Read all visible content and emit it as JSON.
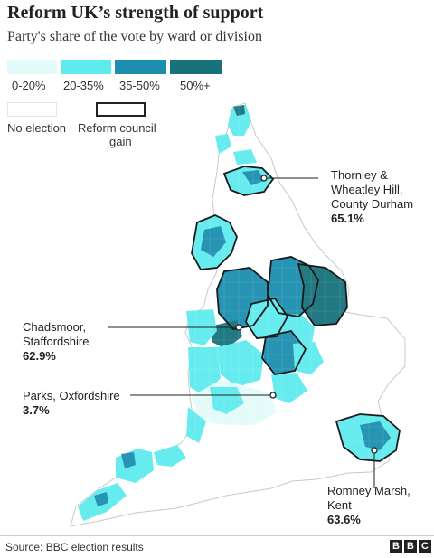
{
  "title": "Reform UK’s strength of support",
  "subtitle": "Party's share of the vote by ward or division",
  "legend": {
    "bins": [
      {
        "label": "0-20%",
        "color": "#e3fbfa"
      },
      {
        "label": "20-35%",
        "color": "#5eebee"
      },
      {
        "label": "35-50%",
        "color": "#1c8fb0"
      },
      {
        "label": "50%+",
        "color": "#17727c"
      }
    ],
    "no_election_label": "No election",
    "gain_label_line1": "Reform council",
    "gain_label_line2": "gain"
  },
  "annotations": {
    "thornley": {
      "line1": "Thornley &",
      "line2": "Wheatley Hill,",
      "line3": "County Durham",
      "value": "65.1%"
    },
    "chadsmoor": {
      "line1": "Chadsmoor,",
      "line2": "Staffordshire",
      "value": "62.9%"
    },
    "parks": {
      "line1": "Parks, Oxfordshire",
      "value": "3.7%"
    },
    "romney": {
      "line1": "Romney Marsh,",
      "line2": "Kent",
      "value": "63.6%"
    }
  },
  "source": "Source: BBC election results",
  "logo_letters": [
    "B",
    "B",
    "C"
  ]
}
